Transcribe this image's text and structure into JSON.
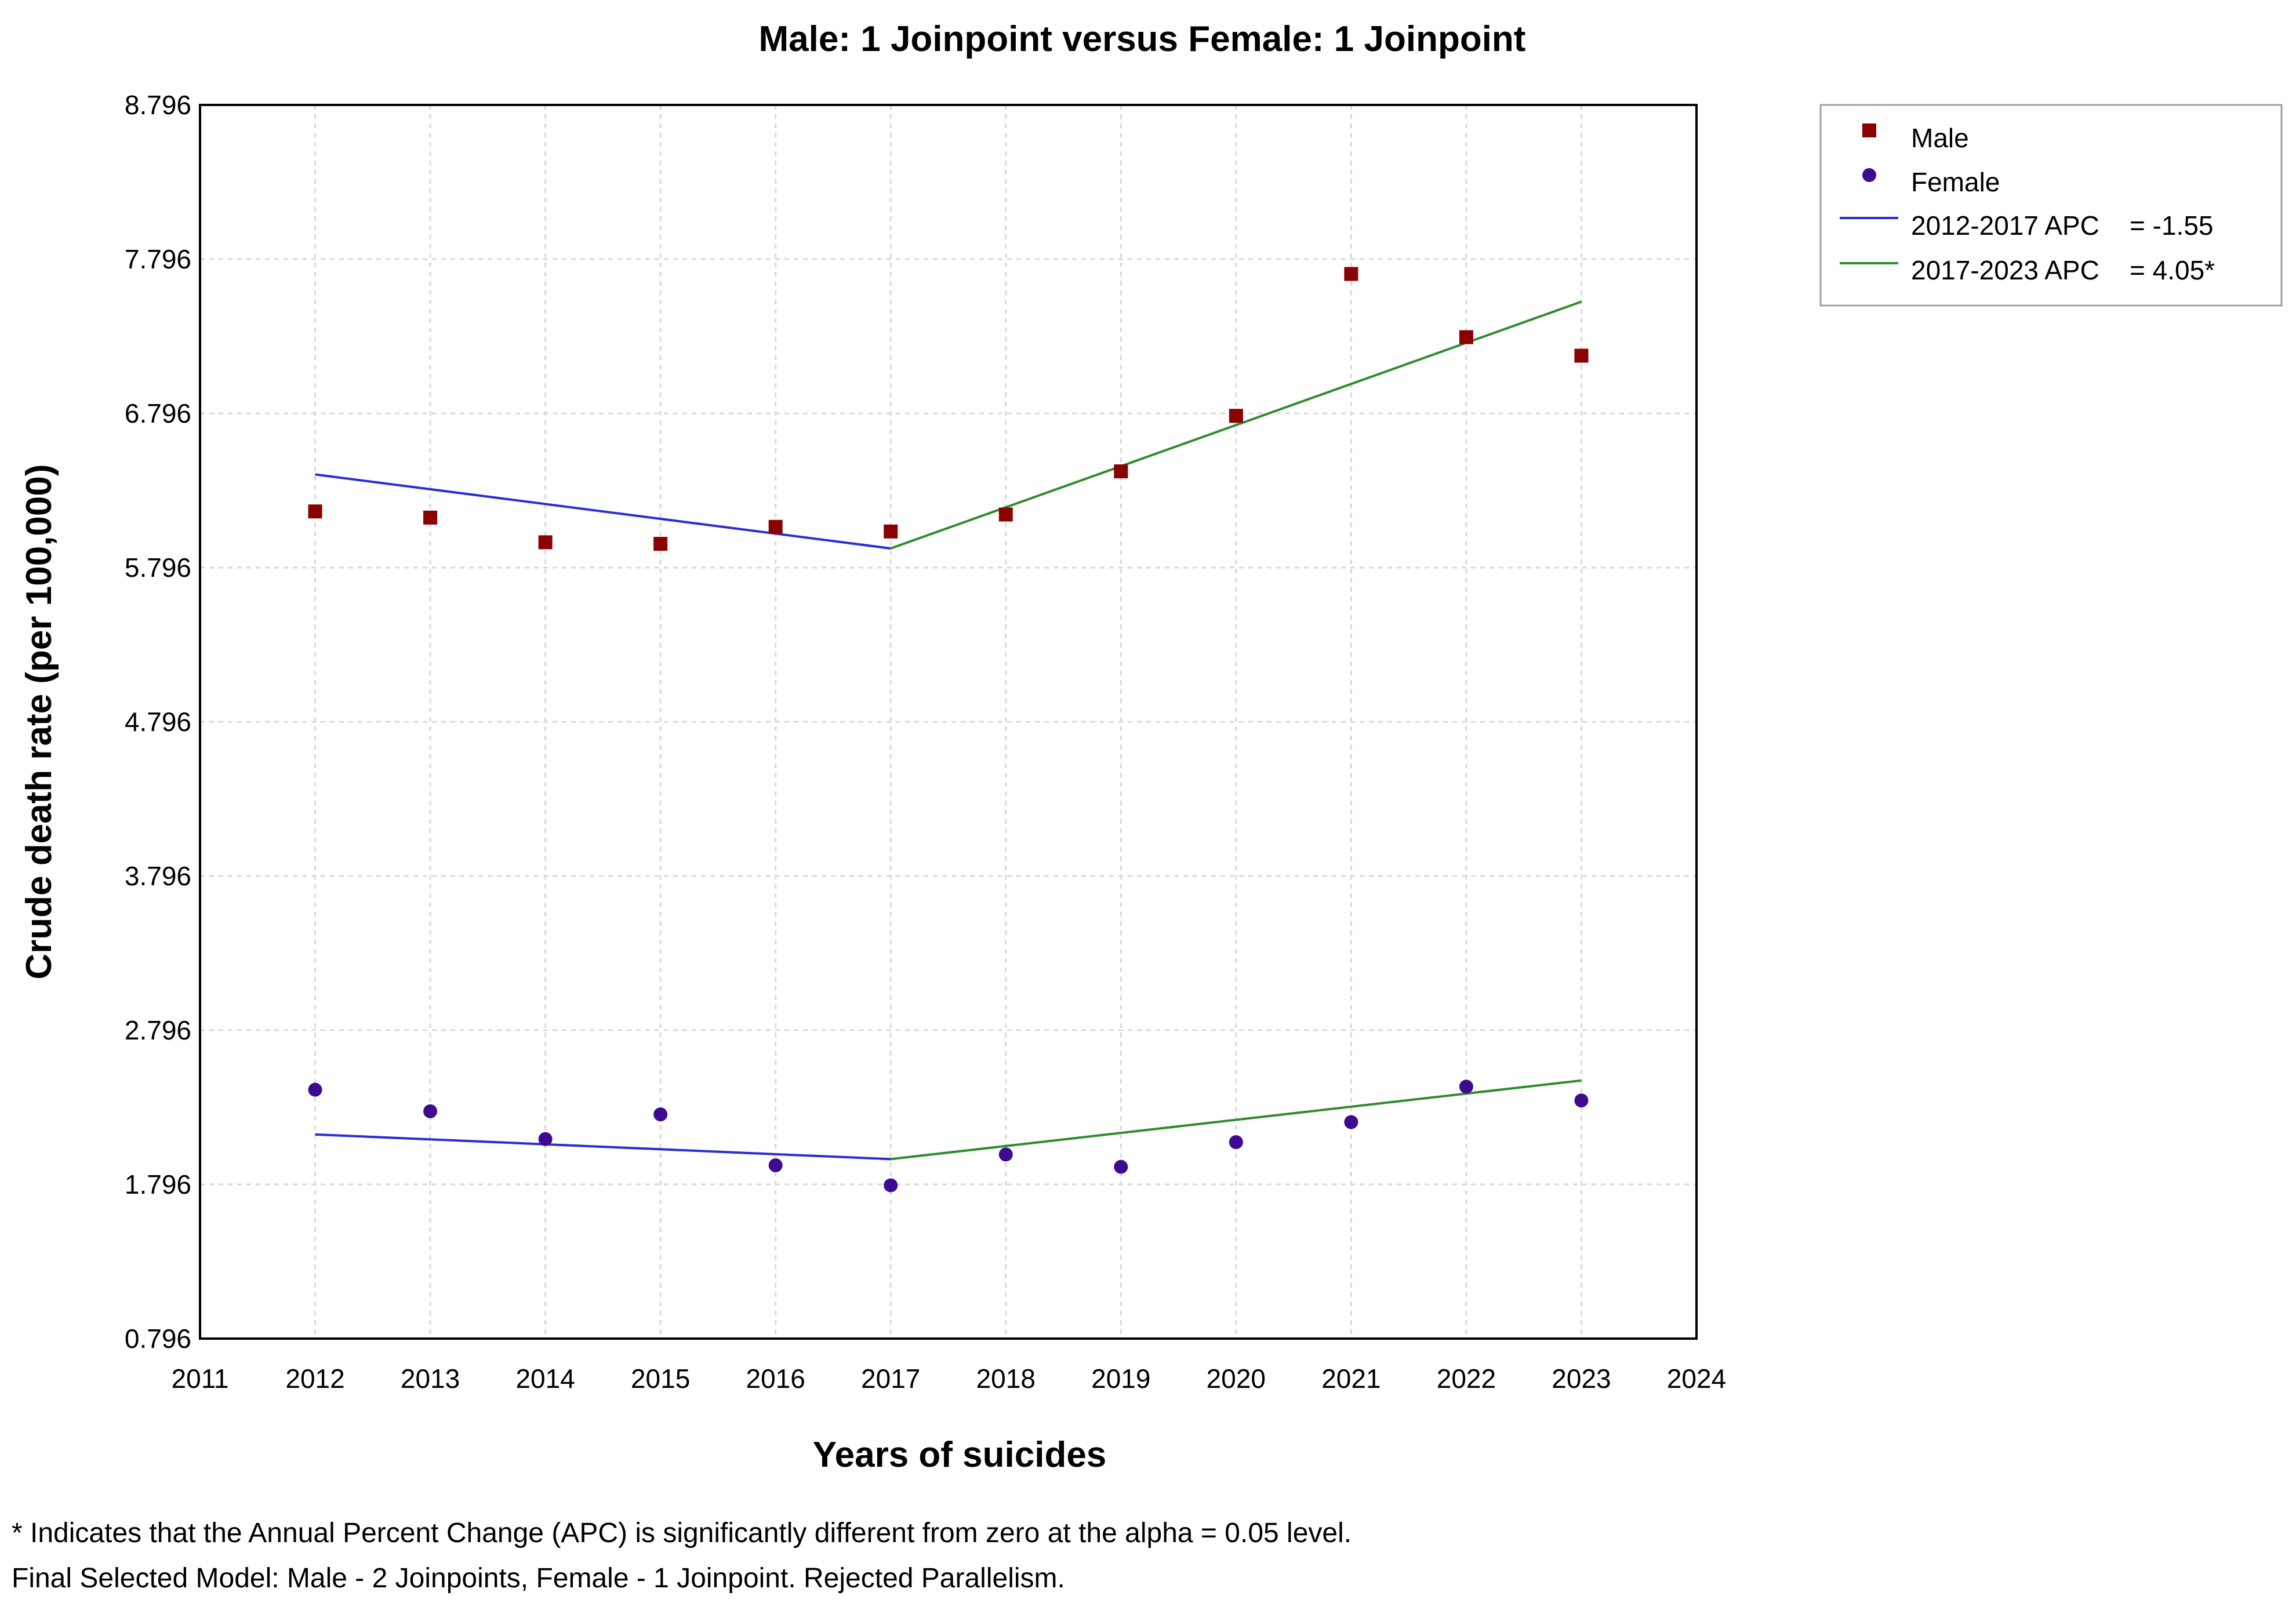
{
  "chart_data": {
    "type": "scatter",
    "title": "Male: 1 Joinpoint versus Female: 1 Joinpoint",
    "xlabel": "Years of suicides",
    "ylabel": "Crude death rate (per 100,000)",
    "xlim": [
      2011,
      2024
    ],
    "ylim": [
      0.796,
      8.796
    ],
    "x_ticks": [
      "2011",
      "2012",
      "2013",
      "2014",
      "2015",
      "2016",
      "2017",
      "2018",
      "2019",
      "2020",
      "2021",
      "2022",
      "2023",
      "2024"
    ],
    "y_ticks": [
      "0.796",
      "1.796",
      "2.796",
      "3.796",
      "4.796",
      "5.796",
      "6.796",
      "7.796",
      "8.796"
    ],
    "grid": true,
    "legend_position": "outside-top-right",
    "series": [
      {
        "name": "Male",
        "marker": "square",
        "color": "#8b0000",
        "x": [
          2012,
          2013,
          2014,
          2015,
          2016,
          2017,
          2018,
          2019,
          2020,
          2021,
          2022,
          2023
        ],
        "values": [
          6.16,
          6.12,
          5.96,
          5.95,
          6.06,
          6.03,
          6.14,
          6.42,
          6.78,
          7.7,
          7.29,
          7.17
        ]
      },
      {
        "name": "Female",
        "marker": "circle",
        "color": "#3d0a91",
        "x": [
          2012,
          2013,
          2014,
          2015,
          2016,
          2017,
          2018,
          2019,
          2020,
          2021,
          2022,
          2023
        ],
        "values": [
          2.41,
          2.27,
          2.09,
          2.25,
          1.92,
          1.79,
          1.99,
          1.91,
          2.07,
          2.2,
          2.43,
          2.34
        ]
      }
    ],
    "fitted_lines": [
      {
        "name": "2012-2017 APC  = -1.55",
        "color": "#2b2bd9",
        "segments": [
          [
            [
              2012,
              6.4
            ],
            [
              2017,
              5.92
            ]
          ],
          [
            [
              2012,
              2.12
            ],
            [
              2017,
              1.96
            ]
          ]
        ]
      },
      {
        "name": "2017-2023 APC  = 4.05*",
        "color": "#2e8b2e",
        "segments": [
          [
            [
              2017,
              5.92
            ],
            [
              2023,
              7.52
            ]
          ],
          [
            [
              2017,
              1.96
            ],
            [
              2023,
              2.47
            ]
          ]
        ]
      }
    ]
  },
  "legend": {
    "male": "Male",
    "female": "Female",
    "seg1_label": "2012-2017 APC",
    "seg1_value": "= -1.55",
    "seg2_label": "2017-2023 APC",
    "seg2_value": "= 4.05*"
  },
  "footnotes": {
    "line1": "* Indicates that the Annual Percent Change (APC) is significantly different from zero at the alpha = 0.05 level.",
    "line2": "Final Selected Model: Male - 2 Joinpoints, Female - 1 Joinpoint. Rejected Parallelism."
  }
}
